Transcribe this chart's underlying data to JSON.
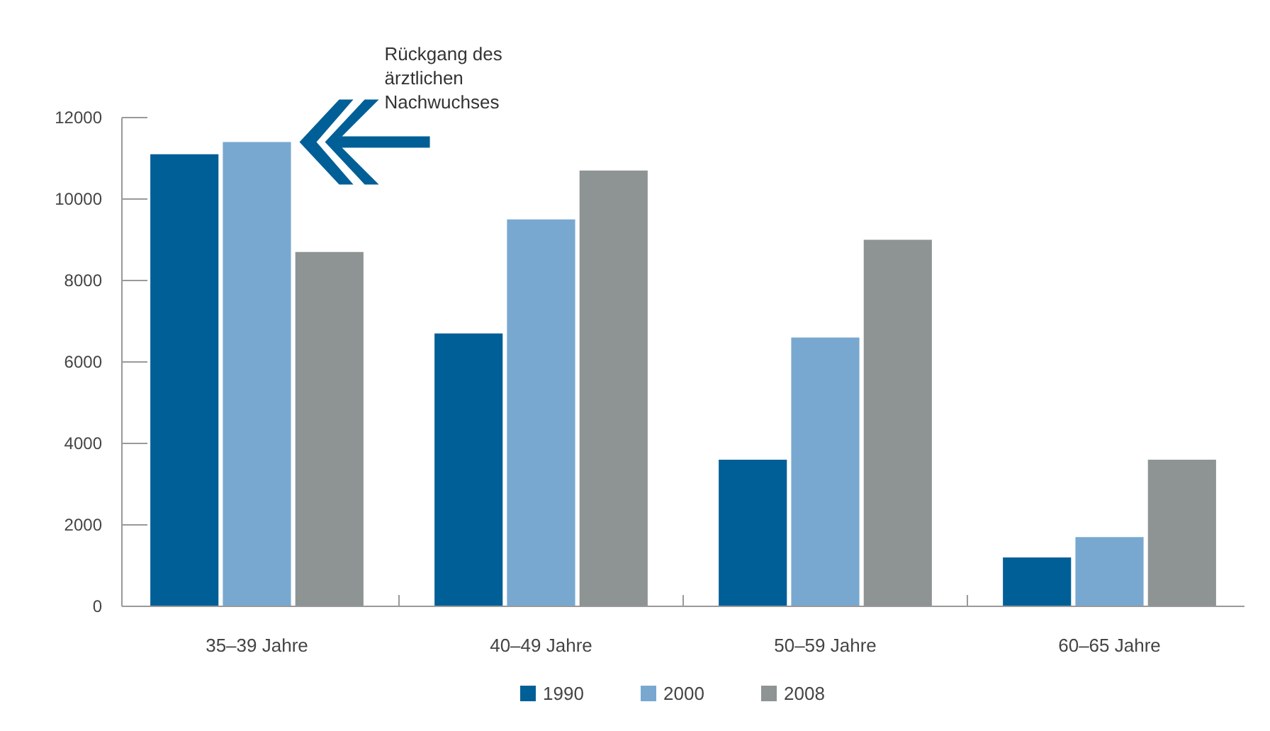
{
  "chart_data": {
    "type": "bar",
    "categories": [
      "35–39 Jahre",
      "40–49 Jahre",
      "50–59 Jahre",
      "60–65 Jahre"
    ],
    "series": [
      {
        "name": "1990",
        "color": "#005f96",
        "values": [
          11100,
          6700,
          3600,
          1200
        ]
      },
      {
        "name": "2000",
        "color": "#78a8cf",
        "values": [
          11400,
          9500,
          6600,
          1700
        ]
      },
      {
        "name": "2008",
        "color": "#8e9393",
        "values": [
          8700,
          10700,
          9000,
          3600
        ]
      }
    ],
    "ylim": [
      0,
      12000
    ],
    "yticks": [
      0,
      2000,
      4000,
      6000,
      8000,
      10000,
      12000
    ],
    "annotations": [
      "Rückgang des ärztlichen Nachwuchses"
    ],
    "legend": "bottom",
    "grid": false
  }
}
